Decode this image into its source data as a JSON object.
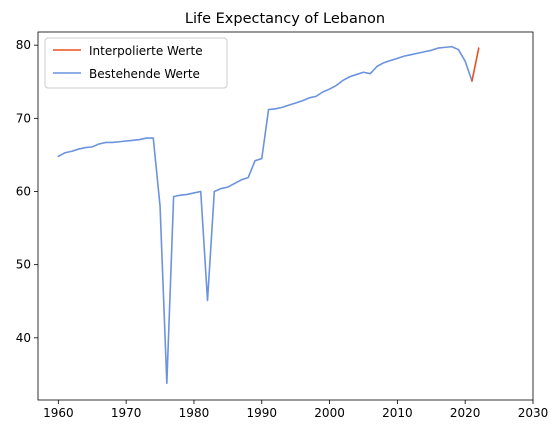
{
  "chart_data": {
    "type": "line",
    "title": "Life Expectancy of Lebanon",
    "xlabel": "",
    "ylabel": "",
    "xlim": [
      1957,
      2030
    ],
    "ylim": [
      31.5,
      81.8
    ],
    "xticks": [
      1960,
      1970,
      1980,
      1990,
      2000,
      2010,
      2020,
      2030
    ],
    "yticks": [
      40,
      50,
      60,
      70,
      80
    ],
    "grid": false,
    "legend_position": "top-left",
    "series": [
      {
        "name": "Interpolierte Werte",
        "color": "#e8501f",
        "x": [
          2021,
          2022
        ],
        "y": [
          75.1,
          79.6
        ]
      },
      {
        "name": "Bestehende Werte",
        "color": "#6b93de",
        "x": [
          1960,
          1961,
          1962,
          1963,
          1964,
          1965,
          1966,
          1967,
          1968,
          1969,
          1970,
          1971,
          1972,
          1973,
          1974,
          1975,
          1976,
          1977,
          1978,
          1979,
          1980,
          1981,
          1982,
          1983,
          1984,
          1985,
          1986,
          1987,
          1988,
          1989,
          1990,
          1991,
          1992,
          1993,
          1994,
          1995,
          1996,
          1997,
          1998,
          1999,
          2000,
          2001,
          2002,
          2003,
          2004,
          2005,
          2006,
          2007,
          2008,
          2009,
          2010,
          2011,
          2012,
          2013,
          2014,
          2015,
          2016,
          2017,
          2018,
          2019,
          2020,
          2021
        ],
        "y": [
          64.8,
          65.3,
          65.5,
          65.8,
          66.0,
          66.1,
          66.5,
          66.7,
          66.7,
          66.8,
          66.9,
          67.0,
          67.1,
          67.3,
          67.3,
          58.0,
          33.8,
          59.3,
          59.5,
          59.6,
          59.8,
          60.0,
          45.1,
          60.0,
          60.4,
          60.6,
          61.1,
          61.6,
          61.9,
          64.2,
          64.5,
          71.2,
          71.3,
          71.5,
          71.8,
          72.1,
          72.4,
          72.8,
          73.0,
          73.6,
          74.0,
          74.5,
          75.2,
          75.7,
          76.0,
          76.3,
          76.1,
          77.1,
          77.6,
          77.9,
          78.2,
          78.5,
          78.7,
          78.9,
          79.1,
          79.3,
          79.6,
          79.7,
          79.8,
          79.4,
          77.8,
          75.1
        ]
      }
    ]
  }
}
